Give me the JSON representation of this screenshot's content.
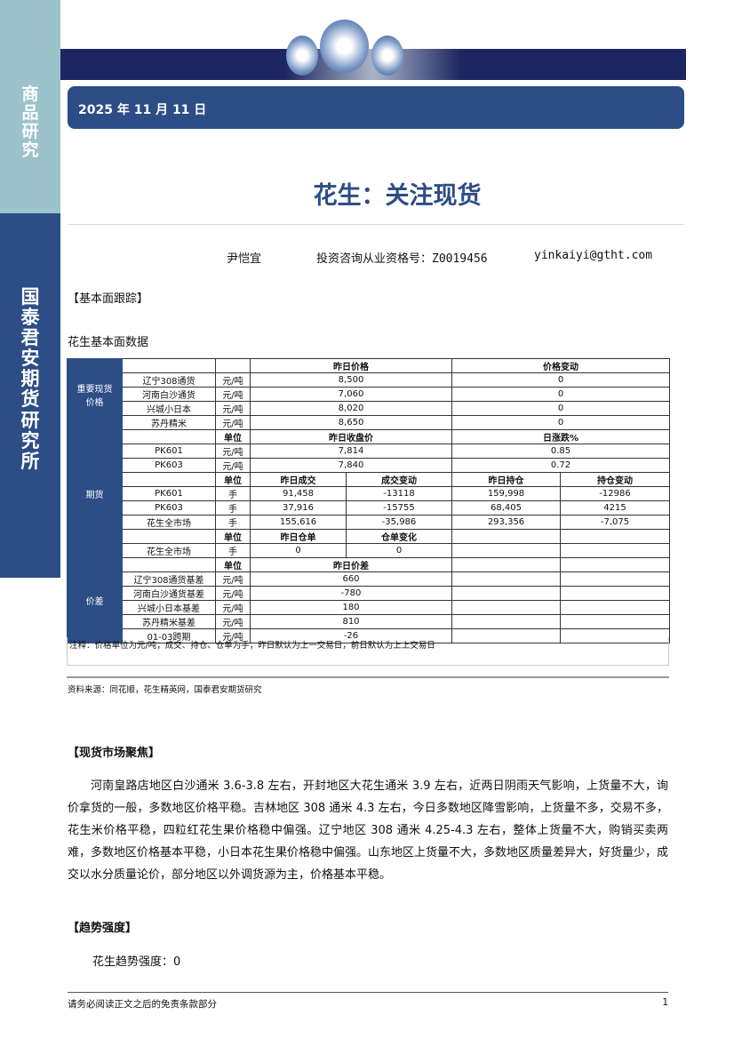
{
  "sidebar": {
    "top_label": [
      "商",
      "品",
      "研",
      "究"
    ],
    "bottom_label": [
      "国",
      "泰",
      "君",
      "安",
      "期",
      "货",
      "研",
      "究",
      "所"
    ]
  },
  "header": {
    "date": "2025 年 11 月 11 日"
  },
  "title": "花生：关注现货",
  "author": {
    "name": "尹恺宜",
    "license": "投资咨询从业资格号：Z0019456",
    "email": "yinkaiyi@gtht.com"
  },
  "section1": "【基本面跟踪】",
  "table_title": "花生基本面数据",
  "table": {
    "sections": [
      {
        "group": "重要现货价格",
        "rows": [
          [
            {
              "t": ""
            },
            {
              "t": ""
            },
            {
              "t": "昨日价格",
              "s": 2,
              "b": 1
            },
            {
              "t": "价格变动",
              "s": 2,
              "b": 1
            }
          ],
          [
            {
              "t": "辽宁308通货"
            },
            {
              "t": "元/吨"
            },
            {
              "t": "8,500",
              "s": 2
            },
            {
              "t": "0",
              "s": 2
            }
          ],
          [
            {
              "t": "河南白沙通货"
            },
            {
              "t": "元/吨"
            },
            {
              "t": "7,060",
              "s": 2
            },
            {
              "t": "0",
              "s": 2
            }
          ],
          [
            {
              "t": "兴城小日本"
            },
            {
              "t": "元/吨"
            },
            {
              "t": "8,020",
              "s": 2
            },
            {
              "t": "0",
              "s": 2
            }
          ],
          [
            {
              "t": "苏丹精米"
            },
            {
              "t": "元/吨"
            },
            {
              "t": "8,650",
              "s": 2
            },
            {
              "t": "0",
              "s": 2
            }
          ]
        ]
      },
      {
        "group": "期货",
        "rows": [
          [
            {
              "t": ""
            },
            {
              "t": "单位",
              "b": 1
            },
            {
              "t": "昨日收盘价",
              "s": 2,
              "b": 1
            },
            {
              "t": "日涨跌%",
              "s": 2,
              "b": 1
            }
          ],
          [
            {
              "t": "PK601"
            },
            {
              "t": "元/吨"
            },
            {
              "t": "7,814",
              "s": 2
            },
            {
              "t": "0.85",
              "s": 2
            }
          ],
          [
            {
              "t": "PK603"
            },
            {
              "t": "元/吨"
            },
            {
              "t": "7,840",
              "s": 2
            },
            {
              "t": "0.72",
              "s": 2
            }
          ],
          [
            {
              "t": ""
            },
            {
              "t": "单位",
              "b": 1
            },
            {
              "t": "昨日成交",
              "b": 1
            },
            {
              "t": "成交变动",
              "b": 1
            },
            {
              "t": "昨日持仓",
              "b": 1
            },
            {
              "t": "持仓变动",
              "b": 1
            }
          ],
          [
            {
              "t": "PK601"
            },
            {
              "t": "手"
            },
            {
              "t": "91,458"
            },
            {
              "t": "-13118"
            },
            {
              "t": "159,998"
            },
            {
              "t": "-12986"
            }
          ],
          [
            {
              "t": "PK603"
            },
            {
              "t": "手"
            },
            {
              "t": "37,916"
            },
            {
              "t": "-15755"
            },
            {
              "t": "68,405"
            },
            {
              "t": "4215"
            }
          ],
          [
            {
              "t": "花生全市场"
            },
            {
              "t": "手"
            },
            {
              "t": "155,616"
            },
            {
              "t": "-35,986"
            },
            {
              "t": "293,356"
            },
            {
              "t": "-7,075"
            }
          ],
          [
            {
              "t": ""
            },
            {
              "t": "单位",
              "b": 1
            },
            {
              "t": "昨日仓单",
              "b": 1
            },
            {
              "t": "仓单变化",
              "b": 1
            },
            {
              "t": ""
            },
            {
              "t": ""
            }
          ],
          [
            {
              "t": "花生全市场"
            },
            {
              "t": "手"
            },
            {
              "t": "0"
            },
            {
              "t": "0"
            },
            {
              "t": ""
            },
            {
              "t": ""
            }
          ]
        ]
      },
      {
        "group": "价差",
        "rows": [
          [
            {
              "t": ""
            },
            {
              "t": "单位",
              "b": 1
            },
            {
              "t": "昨日价差",
              "s": 2,
              "b": 1
            },
            {
              "t": ""
            },
            {
              "t": ""
            }
          ],
          [
            {
              "t": "辽宁308通货基差"
            },
            {
              "t": "元/吨"
            },
            {
              "t": "660",
              "s": 2
            },
            {
              "t": ""
            },
            {
              "t": ""
            }
          ],
          [
            {
              "t": "河南白沙通货基差"
            },
            {
              "t": "元/吨"
            },
            {
              "t": "-780",
              "s": 2
            },
            {
              "t": ""
            },
            {
              "t": ""
            }
          ],
          [
            {
              "t": "兴城小日本基差"
            },
            {
              "t": "元/吨"
            },
            {
              "t": "180",
              "s": 2
            },
            {
              "t": ""
            },
            {
              "t": ""
            }
          ],
          [
            {
              "t": "苏丹精米基差"
            },
            {
              "t": "元/吨"
            },
            {
              "t": "810",
              "s": 2
            },
            {
              "t": ""
            },
            {
              "t": ""
            }
          ],
          [
            {
              "t": "01-03跨期"
            },
            {
              "t": "元/吨"
            },
            {
              "t": "-26",
              "s": 2
            },
            {
              "t": ""
            },
            {
              "t": ""
            }
          ]
        ]
      }
    ]
  },
  "note": "注释：价格单位为元/吨；成交、持仓、仓单为手；昨日默认为上一交易日，前日默认为上上交易日",
  "source": "资料来源：同花顺，花生精英网，国泰君安期货研究",
  "section2": "【现货市场聚焦】",
  "paragraph": "河南皇路店地区白沙通米 3.6-3.8 左右，开封地区大花生通米 3.9 左右，近两日阴雨天气影响，上货量不大，询价拿货的一般，多数地区价格平稳。吉林地区 308 通米 4.3 左右，今日多数地区降雪影响，上货量不多，交易不多，花生米价格平稳，四粒红花生果价格稳中偏强。辽宁地区 308 通米 4.25-4.3 左右，整体上货量不大，购销买卖两难，多数地区价格基本平稳，小日本花生果价格稳中偏强。山东地区上货量不大，多数地区质量差异大，好货量少，成交以水分质量论价，部分地区以外调货源为主，价格基本平稳。",
  "section3": "【趋势强度】",
  "trend": "花生趋势强度：0",
  "footer": {
    "text": "请务必阅读正文之后的免责条款部分",
    "page": "1"
  }
}
